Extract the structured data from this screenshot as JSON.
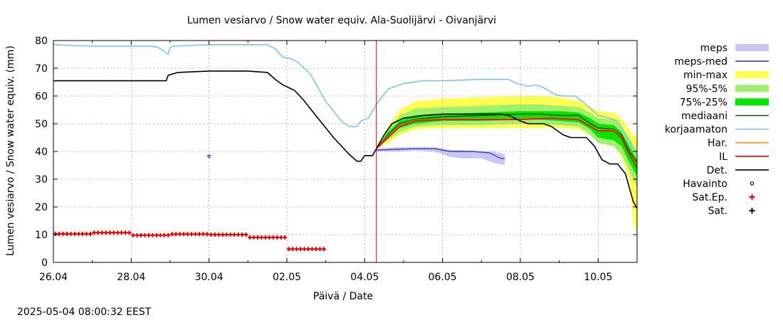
{
  "chart_data": {
    "type": "line",
    "title": "Lumen vesiarvo / Snow water equiv.  Ala-Suolijärvi - Oivanjärvi",
    "xlabel": "Päivä / Date",
    "ylabel": "Lumen vesiarvo / Snow water equiv. (mm)",
    "timestamp": "2025-05-04 08:00:32 EEST",
    "ylim": [
      0,
      80
    ],
    "xlim": [
      0,
      15
    ],
    "y_ticks": [
      0,
      10,
      20,
      30,
      40,
      50,
      60,
      70,
      80
    ],
    "x_ticks": [
      {
        "x": 0,
        "label": "26.04"
      },
      {
        "x": 2,
        "label": "28.04"
      },
      {
        "x": 4,
        "label": "30.04"
      },
      {
        "x": 6,
        "label": "02.05"
      },
      {
        "x": 8,
        "label": "04.05"
      },
      {
        "x": 10,
        "label": "06.05"
      },
      {
        "x": 12,
        "label": "08.05"
      },
      {
        "x": 14,
        "label": "10.05"
      }
    ],
    "grid": true,
    "legend_position": "right",
    "now_x": 8.3,
    "colors": {
      "meps": "#c8c8f5",
      "meps_med": "#3c3cc8",
      "min_max": "#ffff50",
      "p95_5": "#a0f06e",
      "p75_25": "#00e600",
      "mediaani": "#006400",
      "korjaamaton": "#7ac8e0",
      "har": "#ff8c00",
      "il": "#e00000",
      "det": "#000000",
      "havainto": "#000080",
      "sat_ep": "#e00000",
      "sat": "#000000",
      "now_line": "#c00000",
      "grid": "#a0a0a0"
    },
    "legend": [
      {
        "key": "meps",
        "label": "meps",
        "kind": "fill"
      },
      {
        "key": "meps_med",
        "label": "meps-med",
        "kind": "line"
      },
      {
        "key": "min_max",
        "label": "min-max",
        "kind": "fill"
      },
      {
        "key": "p95_5",
        "label": "95%-5%",
        "kind": "fill"
      },
      {
        "key": "p75_25",
        "label": "75%-25%",
        "kind": "fill"
      },
      {
        "key": "mediaani",
        "label": "mediaani",
        "kind": "line"
      },
      {
        "key": "korjaamaton",
        "label": "korjaamaton",
        "kind": "line"
      },
      {
        "key": "har",
        "label": "Har.",
        "kind": "line"
      },
      {
        "key": "il",
        "label": "IL",
        "kind": "line"
      },
      {
        "key": "det",
        "label": "Det.",
        "kind": "line"
      },
      {
        "key": "havainto",
        "label": "Havainto",
        "kind": "circle"
      },
      {
        "key": "sat_ep",
        "label": "Sat.Ep.",
        "kind": "plus"
      },
      {
        "key": "sat",
        "label": "Sat.",
        "kind": "plus"
      }
    ],
    "series": {
      "korjaamaton": [
        [
          0,
          78.5
        ],
        [
          0.5,
          78.2
        ],
        [
          1,
          78.0
        ],
        [
          2,
          78.0
        ],
        [
          2.5,
          78.0
        ],
        [
          2.7,
          77.5
        ],
        [
          2.85,
          76
        ],
        [
          2.95,
          75
        ],
        [
          3.0,
          77.5
        ],
        [
          3.1,
          78
        ],
        [
          3.5,
          78.2
        ],
        [
          4,
          78.5
        ],
        [
          5,
          78.5
        ],
        [
          5.5,
          78.5
        ],
        [
          5.7,
          77
        ],
        [
          5.9,
          74
        ],
        [
          6.1,
          73.5
        ],
        [
          6.3,
          72
        ],
        [
          6.6,
          68
        ],
        [
          7.0,
          58
        ],
        [
          7.4,
          51
        ],
        [
          7.6,
          49
        ],
        [
          7.8,
          49
        ],
        [
          7.9,
          51
        ],
        [
          8.1,
          52
        ],
        [
          8.3,
          57
        ],
        [
          8.6,
          62.5
        ],
        [
          9,
          64.5
        ],
        [
          9.5,
          65.5
        ],
        [
          10,
          65.5
        ],
        [
          11,
          66
        ],
        [
          11.7,
          66
        ],
        [
          11.9,
          64.5
        ],
        [
          12.2,
          63.5
        ],
        [
          12.4,
          64
        ],
        [
          12.6,
          63
        ],
        [
          12.9,
          60.5
        ],
        [
          13.1,
          60
        ],
        [
          13.4,
          60
        ],
        [
          13.6,
          58
        ],
        [
          14,
          53
        ],
        [
          14.3,
          52
        ],
        [
          14.5,
          51
        ],
        [
          14.7,
          46
        ],
        [
          14.9,
          41
        ],
        [
          15,
          40
        ]
      ],
      "det": [
        [
          0,
          65.5
        ],
        [
          1,
          65.5
        ],
        [
          2,
          65.5
        ],
        [
          2.5,
          65.5
        ],
        [
          2.8,
          65.5
        ],
        [
          2.9,
          65.5
        ],
        [
          2.95,
          67.5
        ],
        [
          3.2,
          68.5
        ],
        [
          4,
          69
        ],
        [
          5,
          69
        ],
        [
          5.5,
          68.5
        ],
        [
          5.7,
          66
        ],
        [
          5.9,
          64
        ],
        [
          6.2,
          62
        ],
        [
          6.4,
          59
        ],
        [
          6.8,
          52
        ],
        [
          7.2,
          45
        ],
        [
          7.6,
          39
        ],
        [
          7.8,
          36.5
        ],
        [
          7.9,
          36.5
        ],
        [
          8.0,
          38.5
        ],
        [
          8.2,
          38.5
        ],
        [
          8.3,
          41
        ],
        [
          8.5,
          46
        ],
        [
          8.7,
          50
        ],
        [
          9,
          52
        ],
        [
          9.5,
          53
        ],
        [
          10,
          53.5
        ],
        [
          11,
          53.5
        ],
        [
          11.5,
          53.5
        ],
        [
          11.7,
          53
        ],
        [
          12,
          51
        ],
        [
          12.2,
          50
        ],
        [
          12.6,
          50
        ],
        [
          12.8,
          49
        ],
        [
          13.1,
          46
        ],
        [
          13.3,
          45
        ],
        [
          13.7,
          45
        ],
        [
          13.9,
          42
        ],
        [
          14.1,
          37
        ],
        [
          14.3,
          35.5
        ],
        [
          14.5,
          35.5
        ],
        [
          14.7,
          32
        ],
        [
          14.9,
          22
        ],
        [
          15,
          19.5
        ]
      ],
      "mediaani": [
        [
          8.3,
          41
        ],
        [
          8.6,
          46
        ],
        [
          8.9,
          50
        ],
        [
          9.3,
          51.5
        ],
        [
          10,
          52.5
        ],
        [
          11,
          53
        ],
        [
          12,
          53.5
        ],
        [
          12.5,
          53.5
        ],
        [
          13,
          53
        ],
        [
          13.5,
          53
        ],
        [
          13.8,
          50
        ],
        [
          14,
          48.5
        ],
        [
          14.4,
          48
        ],
        [
          14.6,
          46
        ],
        [
          14.8,
          40
        ],
        [
          15,
          36
        ]
      ],
      "il": [
        [
          8.3,
          41
        ],
        [
          8.6,
          45
        ],
        [
          8.9,
          49
        ],
        [
          9.3,
          51
        ],
        [
          10,
          51.5
        ],
        [
          11,
          51.5
        ],
        [
          12,
          51.5
        ],
        [
          12.8,
          52
        ],
        [
          13.5,
          51.5
        ],
        [
          13.8,
          49
        ],
        [
          14,
          47.5
        ],
        [
          14.4,
          47.5
        ],
        [
          14.6,
          45
        ],
        [
          14.8,
          39
        ],
        [
          15,
          34
        ]
      ],
      "har": [
        [
          8.3,
          41
        ],
        [
          8.6,
          45.5
        ],
        [
          8.9,
          49.5
        ],
        [
          9.3,
          51.3
        ],
        [
          10,
          51.8
        ],
        [
          11,
          51.8
        ],
        [
          12,
          51.8
        ],
        [
          12.8,
          52.2
        ],
        [
          13.5,
          51.8
        ],
        [
          13.8,
          49.2
        ],
        [
          14,
          47.8
        ],
        [
          14.4,
          47.8
        ],
        [
          14.6,
          45.3
        ],
        [
          14.8,
          39.3
        ],
        [
          15,
          34.3
        ]
      ],
      "meps_med": [
        [
          8.3,
          40.5
        ],
        [
          8.8,
          40.8
        ],
        [
          9.3,
          41
        ],
        [
          9.8,
          41
        ],
        [
          10.2,
          40
        ],
        [
          10.8,
          40
        ],
        [
          11.2,
          39.5
        ],
        [
          11.5,
          37.5
        ],
        [
          11.6,
          37.5
        ]
      ],
      "min_max": [
        [
          8.3,
          41,
          41
        ],
        [
          8.6,
          43,
          49
        ],
        [
          8.9,
          46,
          55
        ],
        [
          9.3,
          48,
          58
        ],
        [
          10,
          48.5,
          59
        ],
        [
          11,
          48.5,
          59.5
        ],
        [
          12,
          48.5,
          60
        ],
        [
          12.5,
          48.5,
          60
        ],
        [
          13,
          48.5,
          59.5
        ],
        [
          13.5,
          48,
          58
        ],
        [
          13.8,
          46,
          56
        ],
        [
          14,
          44,
          54.5
        ],
        [
          14.4,
          42,
          54
        ],
        [
          14.6,
          38,
          52
        ],
        [
          14.8,
          30,
          48
        ],
        [
          14.9,
          15,
          46
        ],
        [
          15,
          10,
          45
        ]
      ],
      "p95_5": [
        [
          8.3,
          41,
          41
        ],
        [
          8.6,
          44,
          48
        ],
        [
          8.9,
          47,
          53
        ],
        [
          9.3,
          49,
          55.5
        ],
        [
          10,
          49.5,
          56
        ],
        [
          11,
          49.5,
          56.5
        ],
        [
          12,
          50,
          57
        ],
        [
          12.5,
          50,
          57
        ],
        [
          13,
          49.5,
          56.5
        ],
        [
          13.5,
          49,
          56
        ],
        [
          13.8,
          46,
          54
        ],
        [
          14,
          43,
          52
        ],
        [
          14.4,
          42,
          51.5
        ],
        [
          14.6,
          39,
          49
        ],
        [
          14.8,
          33,
          45
        ],
        [
          15,
          27,
          40
        ]
      ],
      "p75_25": [
        [
          8.3,
          41,
          41
        ],
        [
          8.6,
          45,
          47
        ],
        [
          8.9,
          48.5,
          51
        ],
        [
          9.3,
          50,
          53
        ],
        [
          10,
          51,
          53.5
        ],
        [
          11,
          51,
          54
        ],
        [
          12,
          51.5,
          54.5
        ],
        [
          12.5,
          51.5,
          54.5
        ],
        [
          13,
          51,
          54.5
        ],
        [
          13.5,
          50.5,
          54
        ],
        [
          13.8,
          48,
          52
        ],
        [
          14,
          45,
          50
        ],
        [
          14.4,
          44,
          49.5
        ],
        [
          14.6,
          42,
          47
        ],
        [
          14.8,
          36,
          42
        ],
        [
          15,
          31,
          37
        ]
      ],
      "meps": [
        [
          8.3,
          40,
          41
        ],
        [
          8.8,
          40,
          41.5
        ],
        [
          9.3,
          40.3,
          41.5
        ],
        [
          9.8,
          40,
          41.5
        ],
        [
          10.2,
          38,
          40.5
        ],
        [
          10.5,
          37.5,
          40.5
        ],
        [
          11,
          37.5,
          40
        ],
        [
          11.3,
          36,
          40
        ],
        [
          11.6,
          35,
          39
        ]
      ],
      "havainto": [
        [
          4.0,
          38.3
        ]
      ],
      "sat_ep": [
        [
          0.05,
          10.3
        ],
        [
          0.15,
          10.3
        ],
        [
          0.25,
          10.3
        ],
        [
          0.35,
          10.3
        ],
        [
          0.45,
          10.3
        ],
        [
          0.55,
          10.3
        ],
        [
          0.65,
          10.3
        ],
        [
          0.75,
          10.3
        ],
        [
          0.85,
          10.3
        ],
        [
          0.95,
          10.3
        ],
        [
          1.05,
          10.7
        ],
        [
          1.15,
          10.7
        ],
        [
          1.25,
          10.7
        ],
        [
          1.35,
          10.7
        ],
        [
          1.45,
          10.7
        ],
        [
          1.55,
          10.7
        ],
        [
          1.65,
          10.7
        ],
        [
          1.75,
          10.7
        ],
        [
          1.85,
          10.7
        ],
        [
          1.95,
          10.7
        ],
        [
          2.05,
          9.8
        ],
        [
          2.15,
          9.8
        ],
        [
          2.25,
          9.8
        ],
        [
          2.35,
          9.8
        ],
        [
          2.45,
          9.8
        ],
        [
          2.55,
          9.8
        ],
        [
          2.65,
          9.8
        ],
        [
          2.75,
          9.8
        ],
        [
          2.85,
          9.8
        ],
        [
          2.95,
          9.8
        ],
        [
          3.05,
          10.2
        ],
        [
          3.15,
          10.2
        ],
        [
          3.25,
          10.2
        ],
        [
          3.35,
          10.2
        ],
        [
          3.45,
          10.2
        ],
        [
          3.55,
          10.2
        ],
        [
          3.65,
          10.2
        ],
        [
          3.75,
          10.2
        ],
        [
          3.85,
          10.2
        ],
        [
          3.95,
          10.2
        ],
        [
          4.05,
          10.0
        ],
        [
          4.15,
          10.0
        ],
        [
          4.25,
          10.0
        ],
        [
          4.35,
          10.0
        ],
        [
          4.45,
          10.0
        ],
        [
          4.55,
          10.0
        ],
        [
          4.65,
          10.0
        ],
        [
          4.75,
          10.0
        ],
        [
          4.85,
          10.0
        ],
        [
          4.95,
          10.0
        ],
        [
          5.05,
          9.0
        ],
        [
          5.15,
          9.0
        ],
        [
          5.25,
          9.0
        ],
        [
          5.35,
          9.0
        ],
        [
          5.45,
          9.0
        ],
        [
          5.55,
          9.0
        ],
        [
          5.65,
          9.0
        ],
        [
          5.75,
          9.0
        ],
        [
          5.85,
          9.0
        ],
        [
          5.95,
          9.0
        ],
        [
          6.05,
          4.8
        ],
        [
          6.15,
          4.8
        ],
        [
          6.25,
          4.8
        ],
        [
          6.35,
          4.8
        ],
        [
          6.45,
          4.8
        ],
        [
          6.55,
          4.8
        ],
        [
          6.65,
          4.8
        ],
        [
          6.75,
          4.8
        ],
        [
          6.85,
          4.8
        ],
        [
          6.95,
          4.8
        ]
      ]
    }
  }
}
